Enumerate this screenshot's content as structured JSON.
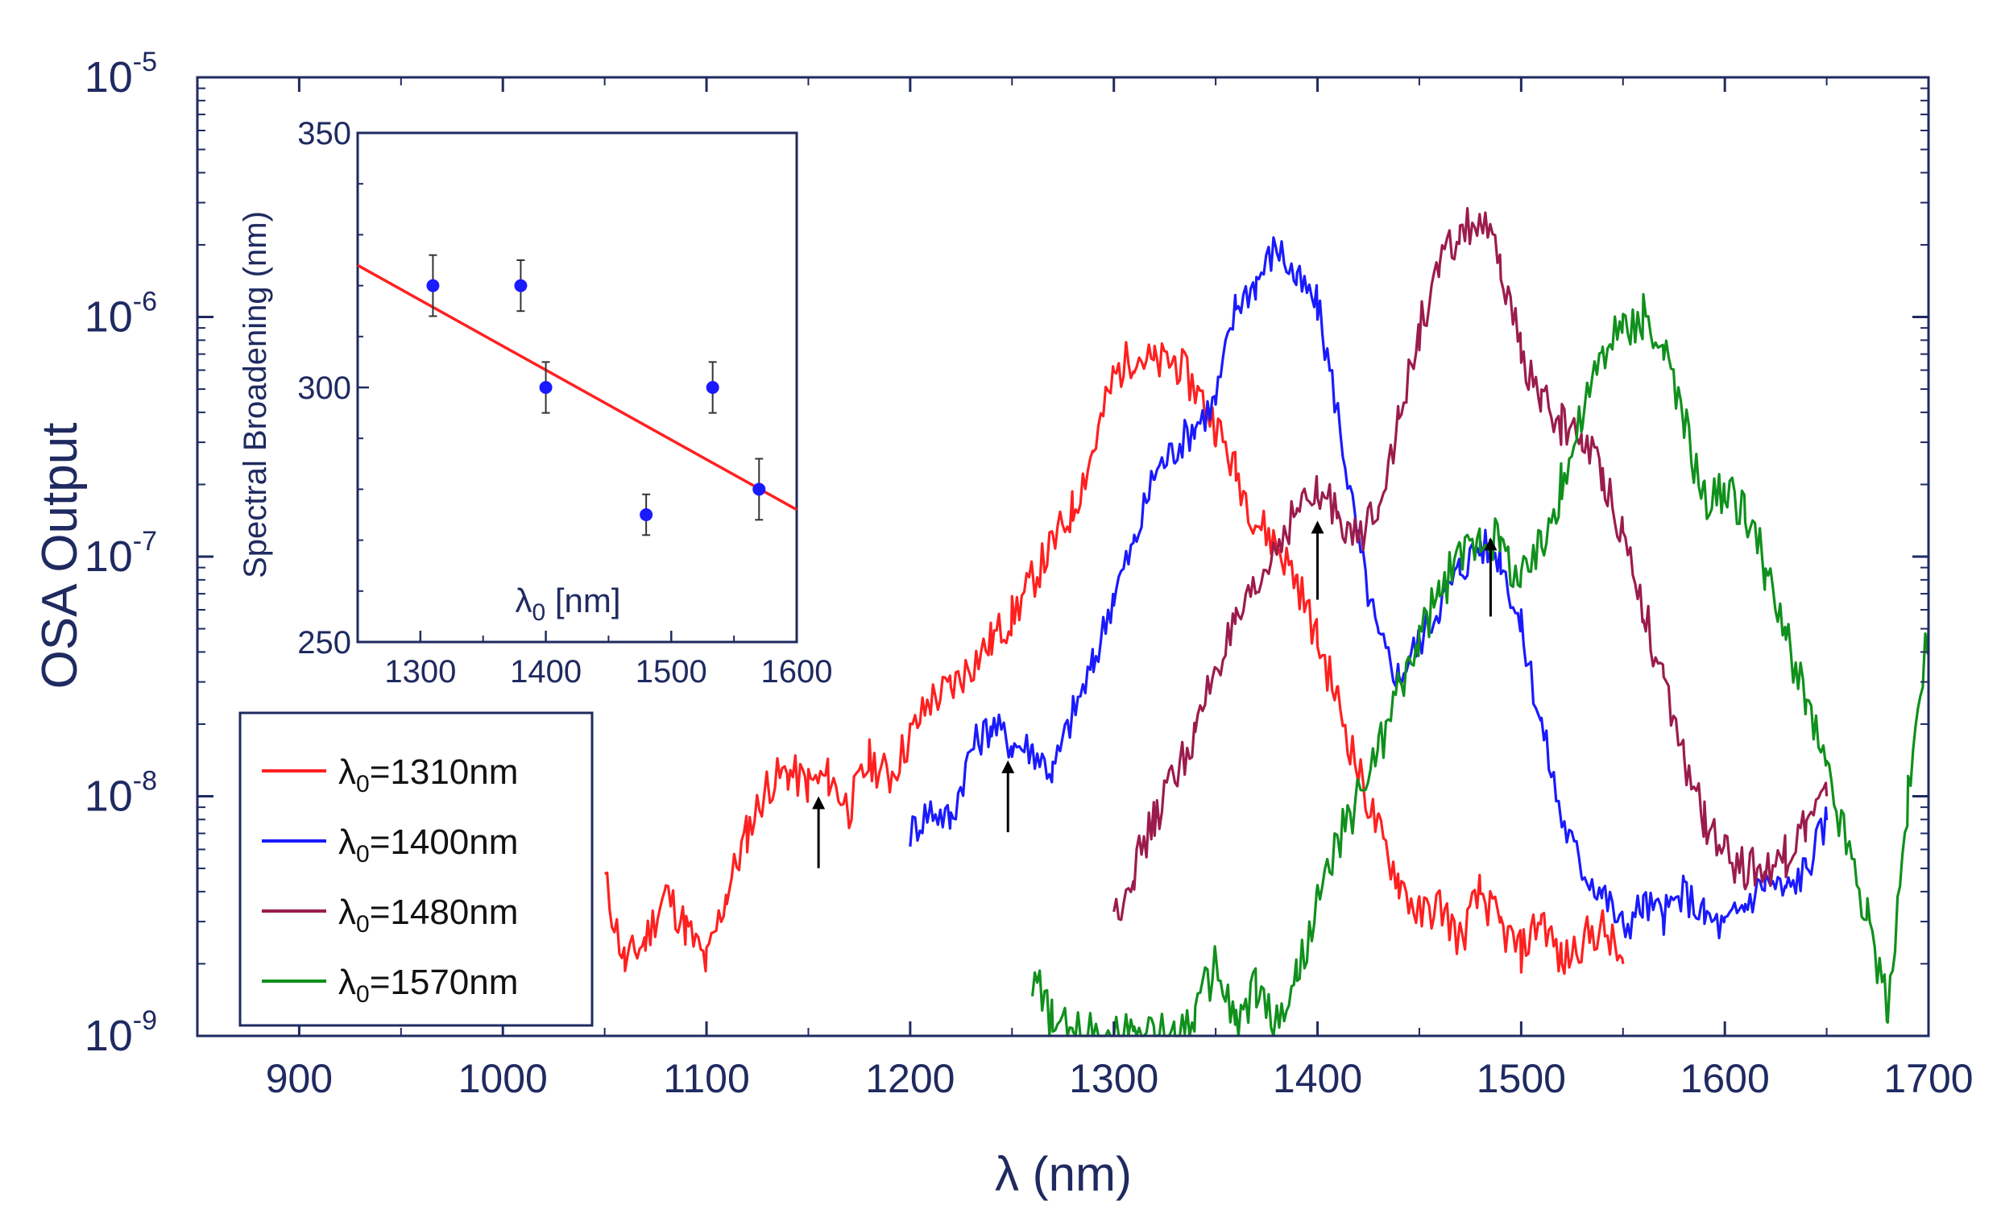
{
  "chart_data": [
    {
      "type": "line",
      "xlabel": "λ (nm)",
      "ylabel": "OSA Output",
      "xlim": [
        850,
        1700
      ],
      "ylim_exp": [
        -9,
        -5
      ],
      "yscale": "log",
      "x_ticks": [
        900,
        1000,
        1100,
        1200,
        1300,
        1400,
        1500,
        1600,
        1700
      ],
      "y_ticks": [
        {
          "base": "10",
          "exp": "-5",
          "value_exp": -5
        },
        {
          "base": "10",
          "exp": "-6",
          "value_exp": -6
        },
        {
          "base": "10",
          "exp": "-7",
          "value_exp": -7
        },
        {
          "base": "10",
          "exp": "-8",
          "value_exp": -8
        },
        {
          "base": "10",
          "exp": "-9",
          "value_exp": -9
        }
      ],
      "legend": {
        "placement": "middle-left",
        "entries": [
          {
            "symbol": "λ",
            "sub": "0",
            "text": "=1310nm",
            "series": "s1310"
          },
          {
            "symbol": "λ",
            "sub": "0",
            "text": "=1400nm",
            "series": "s1400"
          },
          {
            "symbol": "λ",
            "sub": "0",
            "text": "=1480nm",
            "series": "s1480"
          },
          {
            "symbol": "λ",
            "sub": "0",
            "text": "=1570nm",
            "series": "s1570"
          }
        ]
      },
      "series": [
        {
          "id": "s1310",
          "name": "λ0=1310nm",
          "color": "#ff2020",
          "x": [
            1050,
            1060,
            1070,
            1080,
            1090,
            1100,
            1110,
            1120,
            1130,
            1140,
            1150,
            1160,
            1170,
            1180,
            1190,
            1200,
            1210,
            1220,
            1230,
            1240,
            1250,
            1260,
            1270,
            1280,
            1290,
            1300,
            1310,
            1320,
            1330,
            1340,
            1350,
            1360,
            1370,
            1380,
            1390,
            1400,
            1410,
            1420,
            1430,
            1440,
            1450,
            1460,
            1470,
            1480,
            1490,
            1500,
            1510,
            1520,
            1530,
            1540,
            1550
          ],
          "logy": [
            -8.35,
            -8.7,
            -8.6,
            -8.4,
            -8.55,
            -8.7,
            -8.4,
            -8.15,
            -7.95,
            -7.9,
            -7.95,
            -7.92,
            -8.05,
            -7.85,
            -7.92,
            -7.75,
            -7.6,
            -7.55,
            -7.45,
            -7.35,
            -7.25,
            -7.1,
            -6.95,
            -6.8,
            -6.55,
            -6.25,
            -6.15,
            -6.2,
            -6.18,
            -6.3,
            -6.45,
            -6.65,
            -6.85,
            -6.95,
            -7.1,
            -7.35,
            -7.6,
            -7.9,
            -8.15,
            -8.35,
            -8.5,
            -8.45,
            -8.6,
            -8.4,
            -8.55,
            -8.65,
            -8.5,
            -8.7,
            -8.6,
            -8.55,
            -8.7
          ],
          "noise": 0.09
        },
        {
          "id": "s1400",
          "name": "λ0=1400nm",
          "color": "#1a1aff",
          "x": [
            1200,
            1210,
            1220,
            1230,
            1240,
            1250,
            1260,
            1270,
            1280,
            1290,
            1300,
            1310,
            1320,
            1330,
            1340,
            1350,
            1360,
            1370,
            1380,
            1390,
            1400,
            1410,
            1420,
            1430,
            1440,
            1450,
            1460,
            1470,
            1480,
            1490,
            1500,
            1510,
            1520,
            1530,
            1540,
            1550,
            1560,
            1570,
            1580,
            1590,
            1600,
            1610,
            1620,
            1630,
            1640,
            1650
          ],
          "logy": [
            -8.15,
            -8.05,
            -8.1,
            -7.8,
            -7.7,
            -7.78,
            -7.8,
            -7.9,
            -7.65,
            -7.45,
            -7.15,
            -6.95,
            -6.65,
            -6.55,
            -6.45,
            -6.35,
            -5.95,
            -5.85,
            -5.7,
            -5.85,
            -5.95,
            -6.4,
            -6.95,
            -7.35,
            -7.5,
            -7.35,
            -7.2,
            -7.05,
            -6.95,
            -7.0,
            -7.3,
            -7.7,
            -8.1,
            -8.3,
            -8.4,
            -8.55,
            -8.45,
            -8.5,
            -8.4,
            -8.5,
            -8.55,
            -8.45,
            -8.35,
            -8.4,
            -8.3,
            -8.1
          ],
          "noise": 0.08
        },
        {
          "id": "s1480",
          "name": "λ0=1480nm",
          "color": "#9b1c4c",
          "x": [
            1300,
            1310,
            1320,
            1330,
            1340,
            1350,
            1360,
            1370,
            1380,
            1390,
            1400,
            1410,
            1420,
            1430,
            1440,
            1450,
            1460,
            1470,
            1480,
            1490,
            1500,
            1510,
            1520,
            1530,
            1540,
            1550,
            1560,
            1570,
            1580,
            1590,
            1600,
            1610,
            1620,
            1630,
            1640,
            1650
          ],
          "logy": [
            -8.5,
            -8.3,
            -8.1,
            -7.9,
            -7.75,
            -7.45,
            -7.3,
            -7.15,
            -6.95,
            -6.8,
            -6.75,
            -6.8,
            -6.95,
            -6.75,
            -6.45,
            -6.05,
            -5.8,
            -5.65,
            -5.6,
            -5.8,
            -6.15,
            -6.35,
            -6.45,
            -6.5,
            -6.65,
            -6.9,
            -7.2,
            -7.55,
            -7.85,
            -8.1,
            -8.25,
            -8.3,
            -8.3,
            -8.25,
            -8.1,
            -8.0
          ],
          "noise": 0.09
        },
        {
          "id": "s1570",
          "name": "λ0=1570nm",
          "color": "#10901c",
          "x": [
            1260,
            1270,
            1280,
            1290,
            1300,
            1310,
            1320,
            1330,
            1340,
            1350,
            1360,
            1370,
            1380,
            1390,
            1400,
            1410,
            1420,
            1430,
            1440,
            1450,
            1460,
            1470,
            1480,
            1490,
            1500,
            1510,
            1520,
            1530,
            1540,
            1550,
            1560,
            1570,
            1580,
            1590,
            1600,
            1610,
            1620,
            1630,
            1640,
            1650,
            1660,
            1670,
            1680,
            1690,
            1700
          ],
          "logy": [
            -8.75,
            -8.95,
            -9.0,
            -9.0,
            -9.0,
            -9.0,
            -9.0,
            -9.0,
            -8.9,
            -8.7,
            -8.95,
            -8.8,
            -8.95,
            -8.75,
            -8.45,
            -8.2,
            -8.0,
            -7.8,
            -7.55,
            -7.35,
            -7.15,
            -7.0,
            -6.9,
            -6.95,
            -7.1,
            -6.95,
            -6.7,
            -6.4,
            -6.15,
            -6.05,
            -6.0,
            -6.15,
            -6.45,
            -6.75,
            -6.75,
            -6.8,
            -7.05,
            -7.35,
            -7.6,
            -7.9,
            -8.2,
            -8.5,
            -8.9,
            -8.0,
            -7.3
          ],
          "noise": 0.1
        }
      ],
      "arrows": [
        {
          "x": 1155,
          "logy_from": -8.3,
          "logy_to": -8.0,
          "color": "#000000"
        },
        {
          "x": 1248,
          "logy_from": -8.15,
          "logy_to": -7.85,
          "color": "#000000"
        },
        {
          "x": 1400,
          "logy_from": -7.18,
          "logy_to": -6.85,
          "color": "#000000"
        },
        {
          "x": 1485,
          "logy_from": -7.25,
          "logy_to": -6.92,
          "color": "#000000"
        }
      ]
    },
    {
      "type": "scatter",
      "placement": "inset-top-left",
      "xlabel_symbol": "λ",
      "xlabel_sub": "0",
      "xlabel_rest": " [nm]",
      "ylabel": "Spectral Broadening (nm)",
      "xlim": [
        1250,
        1600
      ],
      "ylim": [
        250,
        350
      ],
      "x_ticks": [
        1300,
        1400,
        1500,
        1600
      ],
      "y_ticks": [
        250,
        300,
        350
      ],
      "points": [
        {
          "x": 1310,
          "y": 320,
          "err": 6
        },
        {
          "x": 1380,
          "y": 320,
          "err": 5
        },
        {
          "x": 1400,
          "y": 300,
          "err": 5
        },
        {
          "x": 1480,
          "y": 275,
          "err": 4
        },
        {
          "x": 1533,
          "y": 300,
          "err": 5
        },
        {
          "x": 1570,
          "y": 280,
          "err": 6
        }
      ],
      "point_color": "#1a1aff",
      "fit": {
        "x": [
          1250,
          1600
        ],
        "y": [
          324,
          276
        ],
        "color": "#ff2020"
      }
    }
  ]
}
